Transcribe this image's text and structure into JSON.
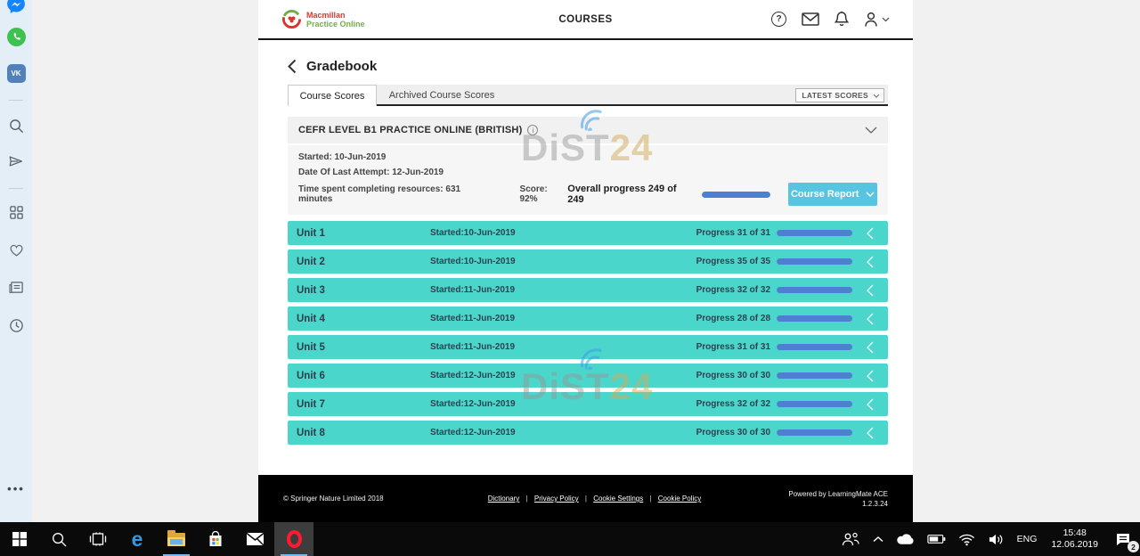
{
  "watermark": {
    "main": "DiST",
    "accent": "24"
  },
  "sidebar": {
    "icons": [
      "messenger",
      "whatsapp",
      "vk",
      "search",
      "my-flow",
      "speed-dial",
      "bookmarks",
      "news",
      "history",
      "more"
    ],
    "vk_label": "VK"
  },
  "header": {
    "logo_line1": "Macmillan",
    "logo_line2": "Practice Online",
    "nav_title": "COURSES",
    "icons": [
      "help",
      "mail",
      "notifications",
      "account"
    ]
  },
  "gradebook": {
    "title": "Gradebook",
    "tabs": [
      {
        "label": "Course Scores",
        "active": true
      },
      {
        "label": "Archived Course Scores",
        "active": false
      }
    ],
    "scores_dropdown": "LATEST SCORES"
  },
  "course": {
    "title": "CEFR LEVEL B1 PRACTICE ONLINE (BRITISH)",
    "started": "Started: 10-Jun-2019",
    "last_attempt": "Date Of Last Attempt: 12-Jun-2019",
    "time_spent": "Time spent completing resources: 631 minutes",
    "score": "Score: 92%",
    "overall_progress": "Overall progress 249 of 249",
    "overall_percent": 100,
    "report_button": "Course Report"
  },
  "units": [
    {
      "name": "Unit 1",
      "started": "Started:10-Jun-2019",
      "progress": "Progress 31 of 31",
      "percent": 100
    },
    {
      "name": "Unit 2",
      "started": "Started:10-Jun-2019",
      "progress": "Progress 35 of 35",
      "percent": 100
    },
    {
      "name": "Unit 3",
      "started": "Started:11-Jun-2019",
      "progress": "Progress 32 of 32",
      "percent": 100
    },
    {
      "name": "Unit 4",
      "started": "Started:11-Jun-2019",
      "progress": "Progress 28 of 28",
      "percent": 100
    },
    {
      "name": "Unit 5",
      "started": "Started:11-Jun-2019",
      "progress": "Progress 31 of 31",
      "percent": 100
    },
    {
      "name": "Unit 6",
      "started": "Started:12-Jun-2019",
      "progress": "Progress 30 of 30",
      "percent": 100
    },
    {
      "name": "Unit 7",
      "started": "Started:12-Jun-2019",
      "progress": "Progress 32 of 32",
      "percent": 100
    },
    {
      "name": "Unit 8",
      "started": "Started:12-Jun-2019",
      "progress": "Progress 30 of 30",
      "percent": 100
    }
  ],
  "footer": {
    "copyright": "© Springer Nature Limited 2018",
    "links": [
      "Dictionary",
      "Privacy Policy",
      "Cookie Settings",
      "Cookie Policy"
    ],
    "sep": "|",
    "powered": "Powered by LearningMate ACE",
    "version": "1.2.3.24"
  },
  "taskbar": {
    "pinned": [
      "start",
      "search",
      "task-view",
      "edge",
      "file-explorer",
      "store",
      "mail",
      "opera"
    ],
    "language": "ENG",
    "time": "15:48",
    "date": "12.06.2019",
    "notification_count": "2"
  },
  "colors": {
    "unit_row_teal": "#4bd6cc",
    "progress_blue": "#4d7fd2",
    "report_button_blue": "#57c5e2",
    "footer_black": "#000000",
    "sidebar_blue": "#e4eef7",
    "logo_red": "#e0392e",
    "logo_green": "#72b043"
  }
}
